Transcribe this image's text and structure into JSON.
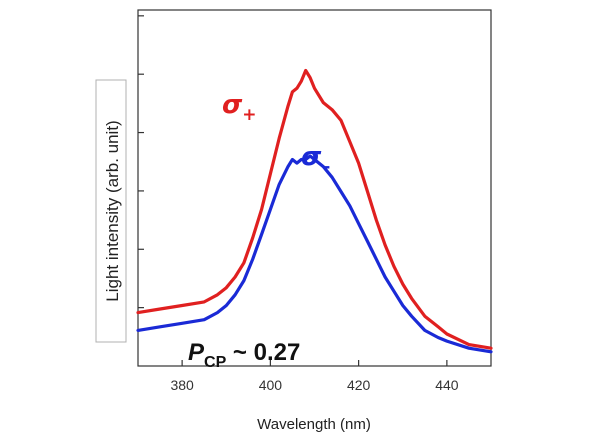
{
  "chart_data": {
    "type": "line",
    "xlabel": "Wavelength (nm)",
    "ylabel": "Light intensity (arb. unit)",
    "xlim": [
      370,
      450
    ],
    "ylim": [
      0,
      1.0
    ],
    "xticks": [
      380,
      400,
      420,
      440
    ],
    "ytick_count": 6,
    "y_tick_labels_shown": false,
    "series": [
      {
        "name": "σ+",
        "name_base": "σ",
        "name_sub": "+",
        "color": "#e02020",
        "x": [
          370,
          375,
          380,
          385,
          388,
          390,
          392,
          394,
          396,
          398,
          400,
          402,
          404,
          405,
          406,
          407,
          408,
          409,
          410,
          412,
          414,
          416,
          418,
          420,
          422,
          424,
          426,
          428,
          430,
          432,
          435,
          438,
          440,
          445,
          450
        ],
        "y": [
          0.15,
          0.16,
          0.17,
          0.18,
          0.2,
          0.22,
          0.25,
          0.29,
          0.36,
          0.44,
          0.54,
          0.64,
          0.73,
          0.77,
          0.78,
          0.8,
          0.83,
          0.81,
          0.78,
          0.74,
          0.72,
          0.69,
          0.63,
          0.57,
          0.49,
          0.41,
          0.34,
          0.28,
          0.23,
          0.19,
          0.14,
          0.11,
          0.09,
          0.06,
          0.05
        ]
      },
      {
        "name": "σ-",
        "name_base": "σ",
        "name_sub": "-",
        "color": "#1a2ad6",
        "x": [
          370,
          375,
          380,
          385,
          388,
          390,
          392,
          394,
          396,
          398,
          400,
          402,
          404,
          405,
          406,
          407,
          408,
          409,
          410,
          412,
          414,
          416,
          418,
          420,
          422,
          424,
          426,
          428,
          430,
          432,
          435,
          438,
          440,
          445,
          450
        ],
        "y": [
          0.1,
          0.11,
          0.12,
          0.13,
          0.15,
          0.17,
          0.2,
          0.24,
          0.3,
          0.37,
          0.44,
          0.51,
          0.56,
          0.58,
          0.57,
          0.58,
          0.58,
          0.59,
          0.58,
          0.56,
          0.53,
          0.49,
          0.45,
          0.4,
          0.35,
          0.3,
          0.25,
          0.21,
          0.17,
          0.14,
          0.1,
          0.08,
          0.07,
          0.05,
          0.04
        ]
      }
    ],
    "annotation": {
      "main": "P",
      "sub": "CP",
      "rest": " ~ 0.27"
    }
  }
}
